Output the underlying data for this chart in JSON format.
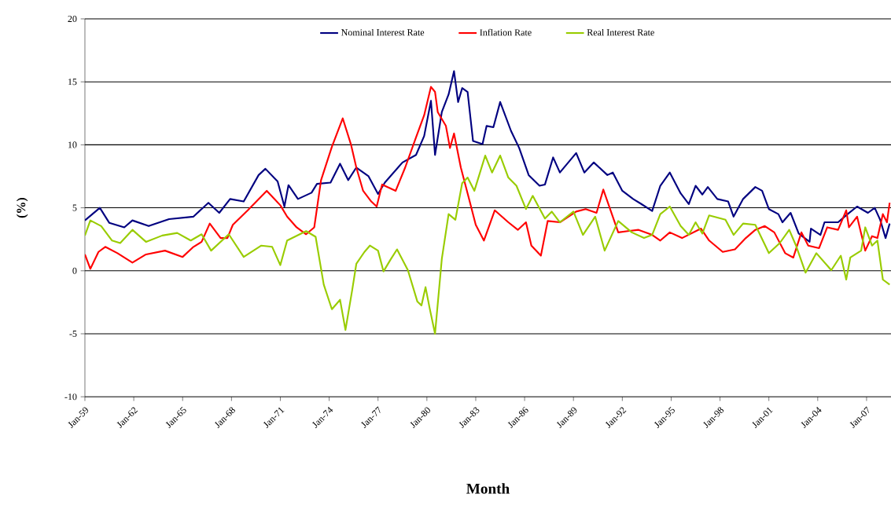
{
  "chart_data": {
    "type": "line",
    "xlabel": "Month",
    "ylabel": "(%)",
    "xlim": [
      "1959-01",
      "2008-07"
    ],
    "ylim": [
      -10,
      20
    ],
    "yticks": [
      -10,
      -5,
      0,
      5,
      10,
      15,
      20
    ],
    "xticks": [
      {
        "value": "1959-01",
        "label": "Jan-59"
      },
      {
        "value": "1962-01",
        "label": "Jan-62"
      },
      {
        "value": "1965-01",
        "label": "Jan-65"
      },
      {
        "value": "1968-01",
        "label": "Jan-68"
      },
      {
        "value": "1971-01",
        "label": "Jan-71"
      },
      {
        "value": "1974-01",
        "label": "Jan-74"
      },
      {
        "value": "1977-01",
        "label": "Jan-77"
      },
      {
        "value": "1980-01",
        "label": "Jan-80"
      },
      {
        "value": "1983-01",
        "label": "Jan-83"
      },
      {
        "value": "1986-01",
        "label": "Jan-86"
      },
      {
        "value": "1989-01",
        "label": "Jan-89"
      },
      {
        "value": "1992-01",
        "label": "Jan-92"
      },
      {
        "value": "1995-01",
        "label": "Jan-95"
      },
      {
        "value": "1998-01",
        "label": "Jan-98"
      },
      {
        "value": "2001-01",
        "label": "Jan-01"
      },
      {
        "value": "2004-01",
        "label": "Jan-04"
      },
      {
        "value": "2007-01",
        "label": "Jan-07"
      }
    ],
    "grid": "y",
    "legend": "top",
    "marker": "none",
    "line_style": "solid",
    "series": [
      {
        "name": "Nominal Interest Rate",
        "color": "#000080",
        "x": [
          "1959-01",
          "1959-12",
          "1960-07",
          "1961-06",
          "1961-12",
          "1962-12",
          "1964-03",
          "1965-09",
          "1966-08",
          "1967-04",
          "1967-12",
          "1968-10",
          "1969-09",
          "1970-02",
          "1970-11",
          "1971-04",
          "1971-07",
          "1972-02",
          "1972-12",
          "1973-04",
          "1974-02",
          "1974-09",
          "1975-03",
          "1975-09",
          "1976-06",
          "1977-01",
          "1977-06",
          "1978-07",
          "1979-05",
          "1979-11",
          "1980-04",
          "1980-07",
          "1980-12",
          "1981-05",
          "1981-09",
          "1981-12",
          "1982-03",
          "1982-07",
          "1982-11",
          "1983-06",
          "1983-09",
          "1984-02",
          "1984-07",
          "1985-03",
          "1985-09",
          "1986-04",
          "1986-12",
          "1987-04",
          "1987-10",
          "1988-03",
          "1989-03",
          "1989-09",
          "1990-04",
          "1991-02",
          "1991-06",
          "1992-01",
          "1992-09",
          "1993-03",
          "1993-11",
          "1994-05",
          "1994-12",
          "1995-08",
          "1996-02",
          "1996-07",
          "1996-12",
          "1997-04",
          "1997-11",
          "1998-07",
          "1998-11",
          "1999-06",
          "2000-03",
          "2000-08",
          "2001-01",
          "2001-08",
          "2001-11",
          "2002-05",
          "2002-11",
          "2003-07",
          "2003-08",
          "2004-03",
          "2004-06",
          "2005-04",
          "2005-11",
          "2006-06",
          "2007-02",
          "2007-07",
          "2007-11",
          "2008-03",
          "2008-06"
        ],
        "values": [
          4.0,
          5.0,
          3.8,
          3.45,
          4.0,
          3.55,
          4.1,
          4.3,
          5.4,
          4.6,
          5.7,
          5.5,
          7.6,
          8.1,
          7.1,
          5.1,
          6.8,
          5.7,
          6.2,
          6.9,
          7.0,
          8.5,
          7.2,
          8.2,
          7.5,
          6.1,
          7.0,
          8.6,
          9.2,
          10.7,
          13.5,
          9.2,
          12.6,
          14.0,
          15.85,
          13.4,
          14.5,
          14.2,
          10.3,
          10.05,
          11.5,
          11.4,
          13.4,
          11.1,
          9.75,
          7.6,
          6.75,
          6.85,
          9.0,
          7.8,
          9.35,
          7.8,
          8.6,
          7.6,
          7.8,
          6.35,
          5.7,
          5.3,
          4.75,
          6.75,
          7.8,
          6.15,
          5.3,
          6.75,
          6.05,
          6.65,
          5.7,
          5.5,
          4.3,
          5.7,
          6.65,
          6.35,
          4.9,
          4.5,
          3.85,
          4.6,
          2.95,
          2.3,
          3.35,
          2.85,
          3.85,
          3.85,
          4.5,
          5.1,
          4.6,
          5.0,
          4.05,
          2.6,
          3.75
        ]
      },
      {
        "name": "Inflation Rate",
        "color": "#ff0000",
        "x": [
          "1959-01",
          "1959-05",
          "1959-11",
          "1960-04",
          "1961-01",
          "1961-12",
          "1962-10",
          "1963-12",
          "1965-01",
          "1965-09",
          "1966-03",
          "1966-09",
          "1967-05",
          "1967-10",
          "1968-02",
          "1969-01",
          "1970-03",
          "1971-01",
          "1971-06",
          "1972-01",
          "1972-08",
          "1973-02",
          "1973-07",
          "1974-03",
          "1974-11",
          "1975-05",
          "1975-09",
          "1976-02",
          "1976-08",
          "1976-12",
          "1977-04",
          "1978-02",
          "1978-09",
          "1979-05",
          "1979-11",
          "1980-04",
          "1980-07",
          "1980-09",
          "1981-03",
          "1981-06",
          "1981-09",
          "1982-02",
          "1982-07",
          "1983-01",
          "1983-07",
          "1984-03",
          "1985-01",
          "1985-08",
          "1986-02",
          "1986-06",
          "1987-01",
          "1987-06",
          "1988-03",
          "1989-03",
          "1989-10",
          "1990-06",
          "1990-11",
          "1991-04",
          "1991-10",
          "1992-05",
          "1993-01",
          "1993-11",
          "1994-05",
          "1994-12",
          "1995-09",
          "1996-11",
          "1997-05",
          "1998-03",
          "1998-12",
          "1999-08",
          "2000-03",
          "2000-10",
          "2001-05",
          "2002-01",
          "2002-07",
          "2003-01",
          "2003-06",
          "2004-02",
          "2004-08",
          "2005-04",
          "2005-10",
          "2005-12",
          "2006-06",
          "2006-12",
          "2007-05",
          "2007-09",
          "2008-01",
          "2008-04",
          "2008-06"
        ],
        "values": [
          1.3,
          0.15,
          1.5,
          1.9,
          1.4,
          0.65,
          1.3,
          1.6,
          1.1,
          1.9,
          2.3,
          3.75,
          2.6,
          2.6,
          3.65,
          4.8,
          6.35,
          5.2,
          4.3,
          3.45,
          2.9,
          3.45,
          7.2,
          9.85,
          12.1,
          10.05,
          8.2,
          6.35,
          5.5,
          5.1,
          6.85,
          6.35,
          8.2,
          10.6,
          12.35,
          14.6,
          14.2,
          12.6,
          11.5,
          9.75,
          10.9,
          8.2,
          6.15,
          3.65,
          2.4,
          4.8,
          3.85,
          3.25,
          3.85,
          2.0,
          1.2,
          3.95,
          3.85,
          4.7,
          4.9,
          4.6,
          6.45,
          4.9,
          3.05,
          3.15,
          3.25,
          2.85,
          2.4,
          3.05,
          2.6,
          3.35,
          2.4,
          1.5,
          1.7,
          2.6,
          3.25,
          3.55,
          3.05,
          1.4,
          1.05,
          3.05,
          2.0,
          1.8,
          3.45,
          3.25,
          4.8,
          3.45,
          4.3,
          1.6,
          2.75,
          2.6,
          4.5,
          3.85,
          5.4
        ]
      },
      {
        "name": "Real Interest Rate",
        "color": "#99cc00",
        "x": [
          "1959-01",
          "1959-05",
          "1960-01",
          "1960-09",
          "1961-03",
          "1961-12",
          "1962-10",
          "1963-10",
          "1964-09",
          "1965-07",
          "1966-03",
          "1966-10",
          "1967-11",
          "1968-10",
          "1969-11",
          "1970-07",
          "1971-01",
          "1971-06",
          "1972-08",
          "1973-03",
          "1973-09",
          "1974-03",
          "1974-09",
          "1975-01",
          "1975-06",
          "1975-09",
          "1976-03",
          "1976-07",
          "1977-01",
          "1977-05",
          "1977-10",
          "1978-03",
          "1978-11",
          "1979-06",
          "1979-09",
          "1979-12",
          "1980-03",
          "1980-07",
          "1980-12",
          "1981-05",
          "1981-10",
          "1982-03",
          "1982-07",
          "1982-12",
          "1983-08",
          "1984-01",
          "1984-07",
          "1985-01",
          "1985-07",
          "1986-02",
          "1986-07",
          "1987-04",
          "1987-09",
          "1988-03",
          "1989-01",
          "1989-08",
          "1990-05",
          "1990-12",
          "1991-10",
          "1992-08",
          "1993-05",
          "1993-11",
          "1994-05",
          "1994-12",
          "1995-08",
          "1996-02",
          "1996-07",
          "1996-12",
          "1997-05",
          "1998-05",
          "1998-11",
          "1999-06",
          "2000-03",
          "2001-01",
          "2001-09",
          "2002-04",
          "2002-09",
          "2003-04",
          "2003-12",
          "2004-11",
          "2005-06",
          "2005-10",
          "2006-01",
          "2006-09",
          "2006-12",
          "2007-05",
          "2007-09",
          "2008-01",
          "2008-06"
        ],
        "values": [
          2.8,
          4.0,
          3.55,
          2.4,
          2.2,
          3.25,
          2.3,
          2.8,
          3.0,
          2.4,
          2.9,
          1.6,
          2.9,
          1.1,
          2.0,
          1.9,
          0.45,
          2.4,
          3.15,
          2.7,
          -1.1,
          -3.05,
          -2.3,
          -4.7,
          -1.5,
          0.55,
          1.5,
          2.0,
          1.6,
          -0.05,
          0.85,
          1.7,
          0.05,
          -2.45,
          -2.75,
          -1.3,
          -2.95,
          -5.0,
          0.95,
          4.5,
          4.05,
          6.95,
          7.4,
          6.35,
          9.15,
          7.8,
          9.15,
          7.4,
          6.75,
          4.9,
          5.95,
          4.15,
          4.7,
          3.85,
          4.7,
          2.85,
          4.3,
          1.6,
          3.95,
          3.05,
          2.6,
          2.85,
          4.5,
          5.1,
          3.55,
          2.85,
          3.85,
          2.95,
          4.4,
          4.05,
          2.85,
          3.75,
          3.65,
          1.4,
          2.2,
          3.25,
          2.0,
          -0.15,
          1.4,
          0.05,
          1.2,
          -0.7,
          1.05,
          1.6,
          3.45,
          2.0,
          2.4,
          -0.7,
          -1.1
        ]
      }
    ]
  }
}
